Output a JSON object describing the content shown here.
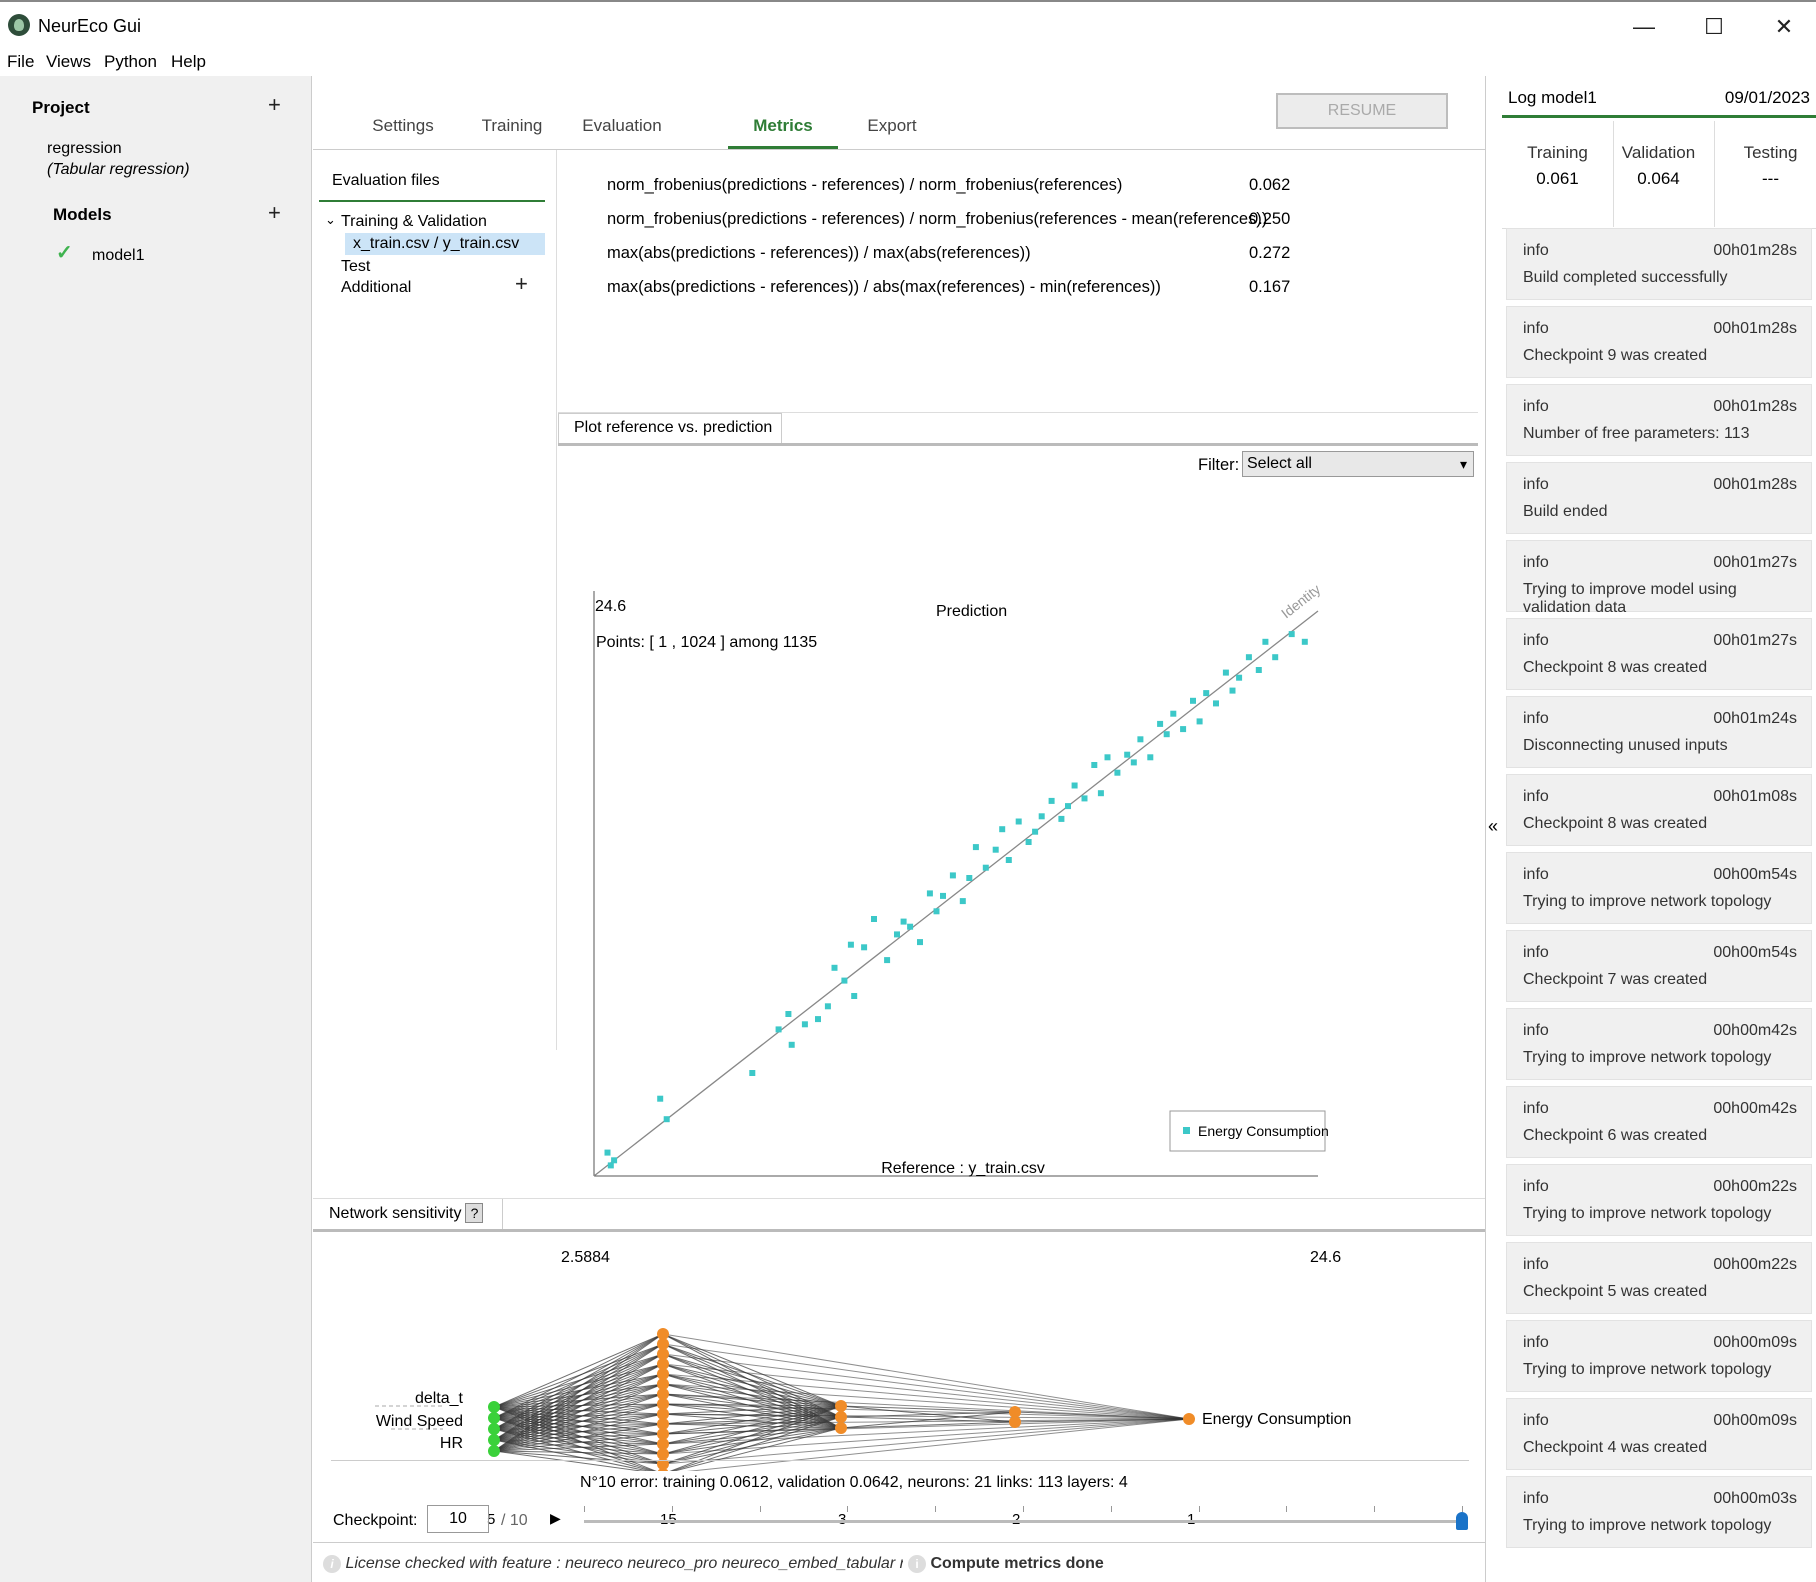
{
  "app": {
    "title": "NeurEco Gui"
  },
  "menu": [
    "File",
    "Views",
    "Python",
    "Help"
  ],
  "project": {
    "header": "Project",
    "name": "regression",
    "type": "(Tabular regression)",
    "models_header": "Models",
    "models": [
      {
        "name": "model1"
      }
    ]
  },
  "tabs": [
    "Settings",
    "Training",
    "Evaluation",
    "Metrics",
    "Export"
  ],
  "resume_label": "RESUME",
  "eval_files": {
    "header": "Evaluation files",
    "group": "Training & Validation",
    "file": "x_train.csv / y_train.csv",
    "test": "Test",
    "additional": "Additional"
  },
  "metrics": [
    {
      "label": "norm_frobenius(predictions - references) / norm_frobenius(references)",
      "value": "0.062"
    },
    {
      "label": "norm_frobenius(predictions - references) / norm_frobenius(references - mean(references))",
      "value": "0.250"
    },
    {
      "label": "max(abs(predictions - references)) / max(abs(references))",
      "value": "0.272"
    },
    {
      "label": "max(abs(predictions - references)) / abs(max(references) - min(references))",
      "value": "0.167"
    }
  ],
  "plot": {
    "tab": "Plot reference vs. prediction",
    "filter_label": "Filter:",
    "filter_value": "Select all"
  },
  "chart_data": {
    "type": "scatter",
    "title": "Prediction",
    "xlabel": "Reference : y_train.csv",
    "ylabel": "",
    "xlim": [
      2.5884,
      24.6
    ],
    "ylim": [
      2.5884,
      24.6
    ],
    "x_tick_labels": [
      "2.5884",
      "24.6"
    ],
    "y_tick_label": "24.6",
    "points_label": "Points: [ 1 , 1024 ] among 1135",
    "identity_label": "Identity",
    "legend": {
      "entries": [
        "Energy Consumption"
      ],
      "placement": "bottom-right"
    },
    "series": [
      {
        "name": "Energy Consumption",
        "color": "#3cc8c8",
        "x": [
          3.0,
          3.1,
          3.2,
          4.6,
          4.8,
          7.4,
          8.2,
          8.5,
          8.6,
          9.0,
          9.4,
          9.7,
          9.9,
          10.2,
          10.4,
          10.5,
          10.8,
          11.1,
          11.5,
          11.8,
          12.0,
          12.2,
          12.5,
          12.8,
          13.0,
          13.2,
          13.5,
          13.8,
          14.0,
          14.2,
          14.5,
          14.8,
          15.0,
          15.2,
          15.5,
          15.8,
          16.0,
          16.2,
          16.5,
          16.8,
          17.0,
          17.2,
          17.5,
          17.8,
          18.0,
          18.2,
          18.5,
          18.8,
          19.0,
          19.2,
          19.5,
          19.8,
          20.0,
          20.2,
          20.5,
          20.8,
          21.0,
          21.2,
          21.5,
          21.8,
          22.0,
          22.2,
          22.5,
          22.8,
          23.0,
          23.3,
          23.8,
          24.2
        ],
        "y": [
          3.5,
          3.0,
          3.2,
          5.6,
          4.8,
          6.6,
          8.3,
          8.9,
          7.7,
          8.5,
          8.7,
          9.2,
          10.7,
          10.2,
          11.6,
          9.6,
          11.5,
          12.6,
          11.0,
          12.0,
          12.5,
          12.3,
          11.7,
          13.6,
          12.9,
          13.5,
          14.3,
          13.3,
          14.2,
          15.4,
          14.6,
          15.3,
          16.1,
          14.9,
          16.4,
          15.6,
          16.0,
          16.6,
          17.2,
          16.5,
          17.0,
          17.8,
          17.3,
          18.6,
          17.5,
          18.9,
          18.3,
          19.0,
          18.7,
          19.6,
          18.9,
          20.2,
          19.8,
          20.6,
          20.0,
          21.1,
          20.3,
          21.4,
          21.0,
          22.2,
          21.5,
          22.0,
          22.8,
          22.3,
          23.4,
          22.8,
          23.7,
          23.4
        ]
      }
    ]
  },
  "sensitivity": {
    "tab": "Network sensitivity",
    "help": "?",
    "inputs": [
      "delta_t",
      "Wind Speed",
      "HR"
    ],
    "output": "Energy Consumption",
    "layer_counts": [
      "5",
      "15",
      "3",
      "2",
      "1"
    ]
  },
  "network_info": "N°10 error: training 0.0612, validation 0.0642,   neurons: 21  links: 113  layers: 4",
  "checkpoint": {
    "label": "Checkpoint:",
    "value": "10",
    "total": "/ 10",
    "progress": 1.0
  },
  "status": {
    "license": "License checked with feature : neureco neureco_pro neureco_embed_tabular neureco_embed_compression",
    "message": "Compute metrics done"
  },
  "log": {
    "title": "Log model1",
    "date": "09/01/2023",
    "scores": [
      {
        "label": "Training",
        "value": "0.061"
      },
      {
        "label": "Validation",
        "value": "0.064"
      },
      {
        "label": "Testing",
        "value": "---"
      }
    ],
    "entries": [
      {
        "level": "info",
        "time": "00h01m28s",
        "msg": "Build completed successfully"
      },
      {
        "level": "info",
        "time": "00h01m28s",
        "msg": "Checkpoint 9 was created"
      },
      {
        "level": "info",
        "time": "00h01m28s",
        "msg": "Number of free parameters: 113"
      },
      {
        "level": "info",
        "time": "00h01m28s",
        "msg": "Build ended"
      },
      {
        "level": "info",
        "time": "00h01m27s",
        "msg": "Trying to improve model using validation data"
      },
      {
        "level": "info",
        "time": "00h01m27s",
        "msg": "Checkpoint 8 was created"
      },
      {
        "level": "info",
        "time": "00h01m24s",
        "msg": "Disconnecting unused inputs"
      },
      {
        "level": "info",
        "time": "00h01m08s",
        "msg": "Checkpoint 8 was created"
      },
      {
        "level": "info",
        "time": "00h00m54s",
        "msg": "Trying to improve network topology"
      },
      {
        "level": "info",
        "time": "00h00m54s",
        "msg": "Checkpoint 7 was created"
      },
      {
        "level": "info",
        "time": "00h00m42s",
        "msg": "Trying to improve network topology"
      },
      {
        "level": "info",
        "time": "00h00m42s",
        "msg": "Checkpoint 6 was created"
      },
      {
        "level": "info",
        "time": "00h00m22s",
        "msg": "Trying to improve network topology"
      },
      {
        "level": "info",
        "time": "00h00m22s",
        "msg": "Checkpoint 5 was created"
      },
      {
        "level": "info",
        "time": "00h00m09s",
        "msg": "Trying to improve network topology"
      },
      {
        "level": "info",
        "time": "00h00m09s",
        "msg": "Checkpoint 4 was created"
      },
      {
        "level": "info",
        "time": "00h00m03s",
        "msg": "Trying to improve network topology"
      }
    ]
  }
}
